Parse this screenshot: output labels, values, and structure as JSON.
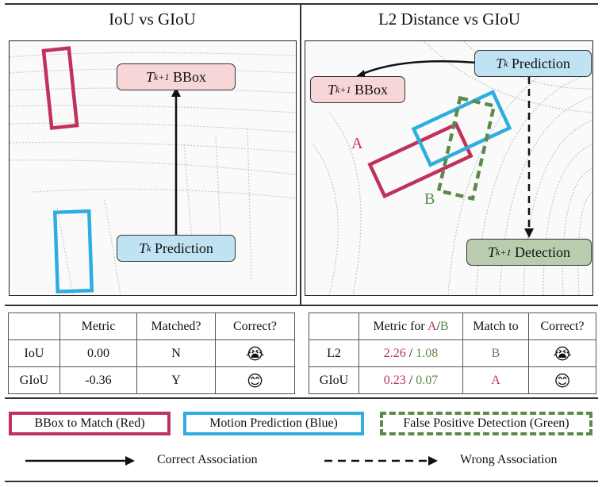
{
  "left_panel": {
    "title": "IoU vs GIoU",
    "next_bbox_label": {
      "t": "T",
      "sub": "k+1",
      "rest": " BBox"
    },
    "prediction_label": {
      "t": "T",
      "sub": "k",
      "rest": " Prediction"
    }
  },
  "right_panel": {
    "title": "L2 Distance vs GIoU",
    "next_bbox_label": {
      "t": "T",
      "sub": "k+1",
      "rest": " BBox"
    },
    "prediction_label": {
      "t": "T",
      "sub": "k",
      "rest": " Prediction"
    },
    "detection_label": {
      "t": "T",
      "sub": "k+1",
      "rest": " Detection"
    },
    "box_a_letter": "A",
    "box_b_letter": "B"
  },
  "left_table": {
    "headers": [
      "",
      "Metric",
      "Matched?",
      "Correct?"
    ],
    "rows": [
      {
        "name": "IoU",
        "metric": "0.00",
        "matched": "N",
        "correct": "😭"
      },
      {
        "name": "GIoU",
        "metric": "-0.36",
        "matched": "Y",
        "correct": "😊"
      }
    ]
  },
  "right_table": {
    "headers": {
      "blank": "",
      "metric_prefix": "Metric for ",
      "a": "A",
      "slash": "/",
      "b": "B",
      "match_to": "Match to",
      "correct": "Correct?"
    },
    "rows": [
      {
        "name": "L2",
        "a_val": "2.26",
        "sep": " / ",
        "b_val": "1.08",
        "match": "B",
        "match_color": "green",
        "correct": "😭"
      },
      {
        "name": "GIoU",
        "a_val": "0.23",
        "sep": " / ",
        "b_val": "0.07",
        "match": "A",
        "match_color": "red",
        "correct": "😊"
      }
    ]
  },
  "legend": {
    "red_box": "BBox to Match (Red)",
    "blue_box": "Motion Prediction (Blue)",
    "green_box": "False Positive Detection (Green)",
    "solid_arrow": "Correct Association",
    "dashed_arrow": "Wrong Association"
  },
  "colors": {
    "red": "#c0325a",
    "blue": "#2eaee0",
    "green": "#5b8a4a",
    "pink_fill": "#f6d6d6",
    "blue_fill": "#bfe3f3",
    "green_fill": "#b9cdae"
  }
}
